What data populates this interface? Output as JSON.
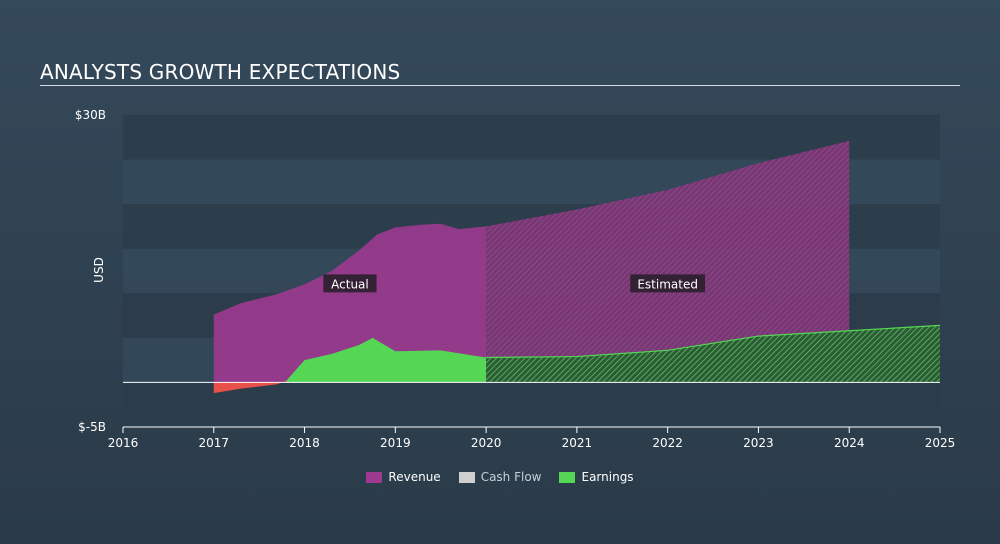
{
  "header": {
    "title": "ANALYSTS GROWTH EXPECTATIONS"
  },
  "colors": {
    "revenue": "#9b3a8f",
    "cashflow": "#cfcfcf",
    "earnings": "#55d655",
    "loss": "#e8504a",
    "band": "#2e3f4d"
  },
  "chart_data": {
    "type": "area",
    "title": "ANALYSTS GROWTH EXPECTATIONS",
    "ylabel": "USD",
    "xlim": [
      2016,
      2025
    ],
    "ylim": [
      -5,
      30
    ],
    "y_tick_labels": [
      {
        "value": 30,
        "label": "$30B"
      },
      {
        "value": -5,
        "label": "$-5B"
      }
    ],
    "x_ticks": [
      2016,
      2017,
      2018,
      2019,
      2020,
      2021,
      2022,
      2023,
      2024,
      2025
    ],
    "annotations": [
      {
        "text": "Actual",
        "x": 2018.5,
        "y": 11
      },
      {
        "text": "Estimated",
        "x": 2022,
        "y": 11
      }
    ],
    "estimate_start": 2020,
    "series": [
      {
        "name": "Revenue",
        "actual": [
          [
            2017.0,
            7.6
          ],
          [
            2017.3,
            8.9
          ],
          [
            2017.7,
            9.9
          ],
          [
            2018.0,
            11.0
          ],
          [
            2018.3,
            12.5
          ],
          [
            2018.6,
            14.8
          ],
          [
            2018.8,
            16.6
          ],
          [
            2019.0,
            17.4
          ],
          [
            2019.3,
            17.7
          ],
          [
            2019.5,
            17.8
          ],
          [
            2019.7,
            17.2
          ],
          [
            2020.0,
            17.5
          ]
        ],
        "estimated": [
          [
            2020.0,
            17.5
          ],
          [
            2021.0,
            19.4
          ],
          [
            2022.0,
            21.6
          ],
          [
            2023.0,
            24.6
          ],
          [
            2024.0,
            27.1
          ]
        ]
      },
      {
        "name": "Cash Flow",
        "actual": [],
        "estimated": []
      },
      {
        "name": "Earnings",
        "actual": [
          [
            2017.0,
            -1.2
          ],
          [
            2017.3,
            -0.7
          ],
          [
            2017.7,
            -0.2
          ],
          [
            2017.8,
            0.2
          ],
          [
            2018.0,
            2.5
          ],
          [
            2018.3,
            3.2
          ],
          [
            2018.6,
            4.2
          ],
          [
            2018.75,
            5.0
          ],
          [
            2018.85,
            4.4
          ],
          [
            2019.0,
            3.5
          ],
          [
            2019.5,
            3.6
          ],
          [
            2019.8,
            3.1
          ],
          [
            2020.0,
            2.8
          ]
        ],
        "estimated": [
          [
            2020.0,
            2.8
          ],
          [
            2021.0,
            2.9
          ],
          [
            2022.0,
            3.6
          ],
          [
            2023.0,
            5.2
          ],
          [
            2024.0,
            5.8
          ],
          [
            2025.0,
            6.4
          ]
        ]
      }
    ],
    "legend": [
      {
        "name": "Revenue",
        "color": "#9b3a8f"
      },
      {
        "name": "Cash Flow",
        "color": "#cfcfcf"
      },
      {
        "name": "Earnings",
        "color": "#55d655"
      }
    ]
  }
}
